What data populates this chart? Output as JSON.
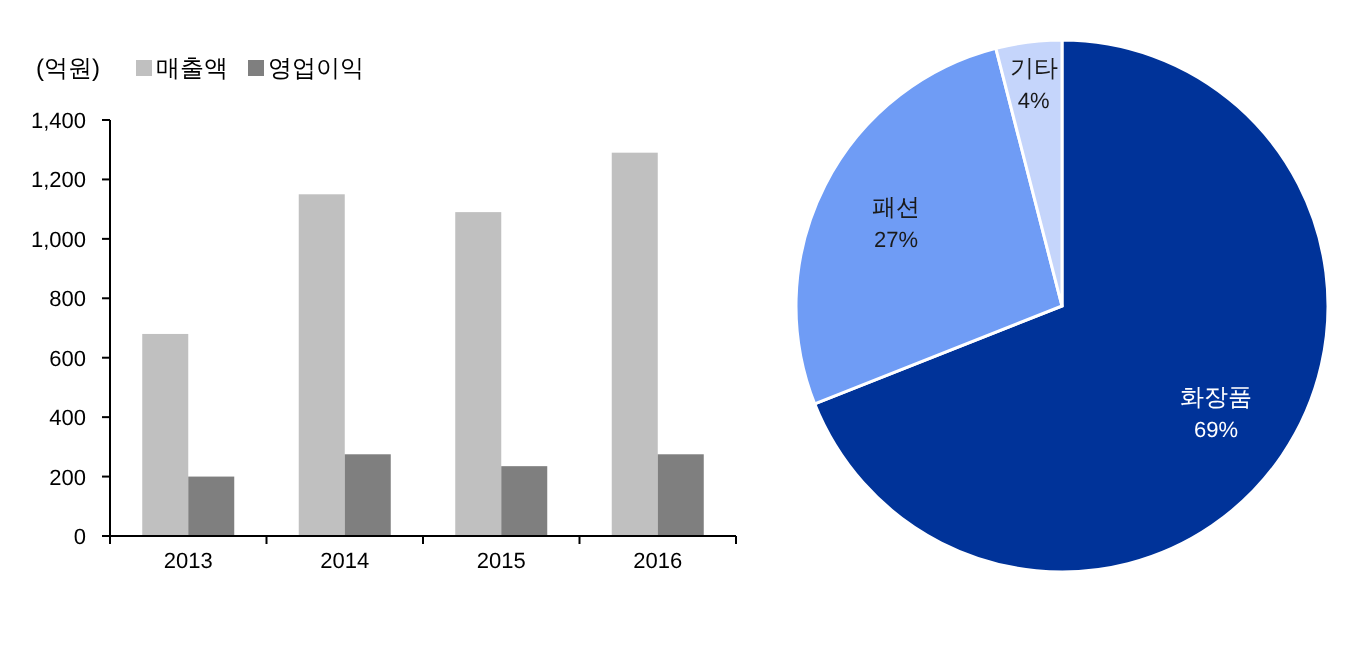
{
  "chart_data": [
    {
      "type": "bar",
      "ylabel": "(억원)",
      "categories": [
        "2013",
        "2014",
        "2015",
        "2016"
      ],
      "series": [
        {
          "name": "매출액",
          "color": "#c0c0c0",
          "values": [
            680,
            1150,
            1090,
            1290
          ]
        },
        {
          "name": "영업이익",
          "color": "#7f7f7f",
          "values": [
            200,
            275,
            235,
            275
          ]
        }
      ],
      "ylim": [
        0,
        1400
      ],
      "yticks": [
        {
          "value": 0,
          "label": "0"
        },
        {
          "value": 200,
          "label": "200"
        },
        {
          "value": 400,
          "label": "400"
        },
        {
          "value": 600,
          "label": "600"
        },
        {
          "value": 800,
          "label": "800"
        },
        {
          "value": 1000,
          "label": "1,000"
        },
        {
          "value": 1200,
          "label": "1,200"
        },
        {
          "value": 1400,
          "label": "1,400"
        }
      ],
      "legend": "top",
      "grid": false
    },
    {
      "type": "pie",
      "categories": [
        "화장품",
        "패션",
        "기타"
      ],
      "values": [
        69,
        27,
        4
      ],
      "colors": [
        "#003399",
        "#6f9cf5",
        "#c5d5fb"
      ],
      "value_labels": [
        "69%",
        "27%",
        "4%"
      ]
    }
  ]
}
